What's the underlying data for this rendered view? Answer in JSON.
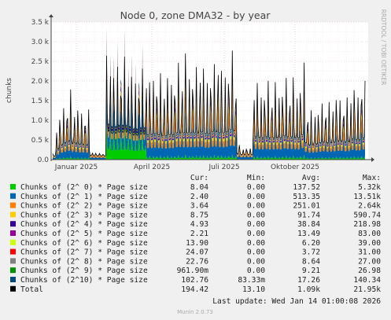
{
  "chart_data": {
    "type": "area",
    "title": "Node 0, zone DMA32 - by year",
    "ylabel": "chunks",
    "side_label": "RRDTOOL / TOBI OETIKER",
    "footer": "Munin 2.0.73",
    "last_update": "Last update: Wed Jan 14 01:00:08 2026",
    "ylim": [
      0,
      3500
    ],
    "y_ticks": [
      "0.0",
      "0.5 k",
      "1.0 k",
      "1.5 k",
      "2.0 k",
      "2.5 k",
      "3.0 k",
      "3.5 k"
    ],
    "x_ticks": [
      "Januar 2025",
      "April 2025",
      "Juli 2025",
      "Oktober 2025"
    ],
    "columns": [
      "Cur:",
      "Min:",
      "Avg:",
      "Max:"
    ],
    "series": [
      {
        "name": "Chunks of (2^ 0) * Page size",
        "color": "#00cc00",
        "cur": "8.04",
        "min": "0.00",
        "avg": "137.52",
        "max": "5.32k"
      },
      {
        "name": "Chunks of (2^ 1) * Page size",
        "color": "#0066b3",
        "cur": "2.40",
        "min": "0.00",
        "avg": "513.35",
        "max": "13.51k"
      },
      {
        "name": "Chunks of (2^ 2) * Page size",
        "color": "#ff8000",
        "cur": "3.64",
        "min": "0.00",
        "avg": "251.01",
        "max": "2.64k"
      },
      {
        "name": "Chunks of (2^ 3) * Page size",
        "color": "#ffcc00",
        "cur": "8.75",
        "min": "0.00",
        "avg": "91.74",
        "max": "590.74"
      },
      {
        "name": "Chunks of (2^ 4) * Page size",
        "color": "#330099",
        "cur": "4.93",
        "min": "0.00",
        "avg": "38.84",
        "max": "218.98"
      },
      {
        "name": "Chunks of (2^ 5) * Page size",
        "color": "#990099",
        "cur": "2.21",
        "min": "0.00",
        "avg": "13.49",
        "max": "83.00"
      },
      {
        "name": "Chunks of (2^ 6) * Page size",
        "color": "#ccff00",
        "cur": "13.90",
        "min": "0.00",
        "avg": "6.20",
        "max": "39.00"
      },
      {
        "name": "Chunks of (2^ 7) * Page size",
        "color": "#ff0000",
        "cur": "24.07",
        "min": "0.00",
        "avg": "3.72",
        "max": "31.00"
      },
      {
        "name": "Chunks of (2^ 8) * Page size",
        "color": "#808080",
        "cur": "22.76",
        "min": "0.00",
        "avg": "8.64",
        "max": "27.00"
      },
      {
        "name": "Chunks of (2^ 9) * Page size",
        "color": "#008f00",
        "cur": "961.90m",
        "min": "0.00",
        "avg": "9.21",
        "max": "26.98"
      },
      {
        "name": "Chunks of (2^10) * Page size",
        "color": "#00487d",
        "cur": "102.76",
        "min": "83.33m",
        "avg": "17.26",
        "max": "140.34"
      },
      {
        "name": "Total",
        "color": "#000000",
        "cur": "194.42",
        "min": "13.10",
        "avg": "1.09k",
        "max": "21.95k"
      }
    ],
    "peaks": [
      [
        0.0,
        150
      ],
      [
        0.5,
        900
      ],
      [
        1,
        1300
      ],
      [
        1.5,
        1500
      ],
      [
        2,
        1700
      ],
      [
        2.5,
        1800
      ],
      [
        3,
        1450
      ],
      [
        3.5,
        1550
      ],
      [
        4,
        1350
      ],
      [
        4.5,
        1400
      ],
      [
        5,
        1300
      ],
      [
        5.5,
        200
      ],
      [
        6,
        180
      ],
      [
        6.5,
        170
      ],
      [
        7,
        160
      ],
      [
        7.5,
        2700
      ],
      [
        8,
        3000
      ],
      [
        8.5,
        2500
      ],
      [
        9,
        2800
      ],
      [
        9.5,
        2600
      ],
      [
        10,
        2700
      ],
      [
        10.5,
        2600
      ],
      [
        11,
        2500
      ],
      [
        11.5,
        2300
      ],
      [
        12,
        2500
      ],
      [
        12.5,
        2400
      ],
      [
        13,
        2600
      ],
      [
        13.5,
        2300
      ],
      [
        14,
        2400
      ],
      [
        14.5,
        2500
      ],
      [
        15,
        2300
      ],
      [
        15.5,
        2200
      ],
      [
        16,
        2400
      ],
      [
        16.5,
        2300
      ],
      [
        17,
        2500
      ],
      [
        17.5,
        2600
      ],
      [
        18,
        2500
      ],
      [
        18.5,
        3100
      ],
      [
        19,
        2500
      ],
      [
        19.5,
        2700
      ],
      [
        20,
        2500
      ],
      [
        20.5,
        2900
      ],
      [
        21,
        2600
      ],
      [
        21.5,
        2400
      ],
      [
        22,
        2700
      ],
      [
        22.5,
        2600
      ],
      [
        23,
        3300
      ],
      [
        23.5,
        2500
      ],
      [
        24,
        2600
      ],
      [
        24.5,
        2800
      ],
      [
        25,
        3000
      ],
      [
        25.5,
        2700
      ],
      [
        26,
        400
      ],
      [
        26.5,
        300
      ],
      [
        27,
        350
      ],
      [
        27.5,
        300
      ],
      [
        28,
        2300
      ],
      [
        28.5,
        2100
      ],
      [
        29,
        2000
      ],
      [
        29.5,
        2100
      ],
      [
        30,
        2200
      ],
      [
        30.5,
        2000
      ],
      [
        31,
        2100
      ],
      [
        31.5,
        2000
      ],
      [
        32,
        2200
      ],
      [
        32.5,
        2300
      ],
      [
        33,
        2100
      ],
      [
        33.5,
        2200
      ],
      [
        34,
        2000
      ],
      [
        34.5,
        2300
      ],
      [
        35,
        2800
      ],
      [
        35.5,
        1500
      ],
      [
        36,
        1300
      ],
      [
        36.5,
        1400
      ],
      [
        37,
        1500
      ],
      [
        37.5,
        1600
      ],
      [
        38,
        1700
      ],
      [
        38.5,
        1500
      ],
      [
        39,
        1600
      ],
      [
        39.5,
        2000
      ],
      [
        40,
        1700
      ],
      [
        40.5,
        1800
      ],
      [
        41,
        1600
      ],
      [
        41.5,
        1900
      ],
      [
        42,
        2300
      ],
      [
        42.5,
        1800
      ],
      [
        43,
        2600
      ],
      [
        43.5,
        2000
      ]
    ]
  }
}
